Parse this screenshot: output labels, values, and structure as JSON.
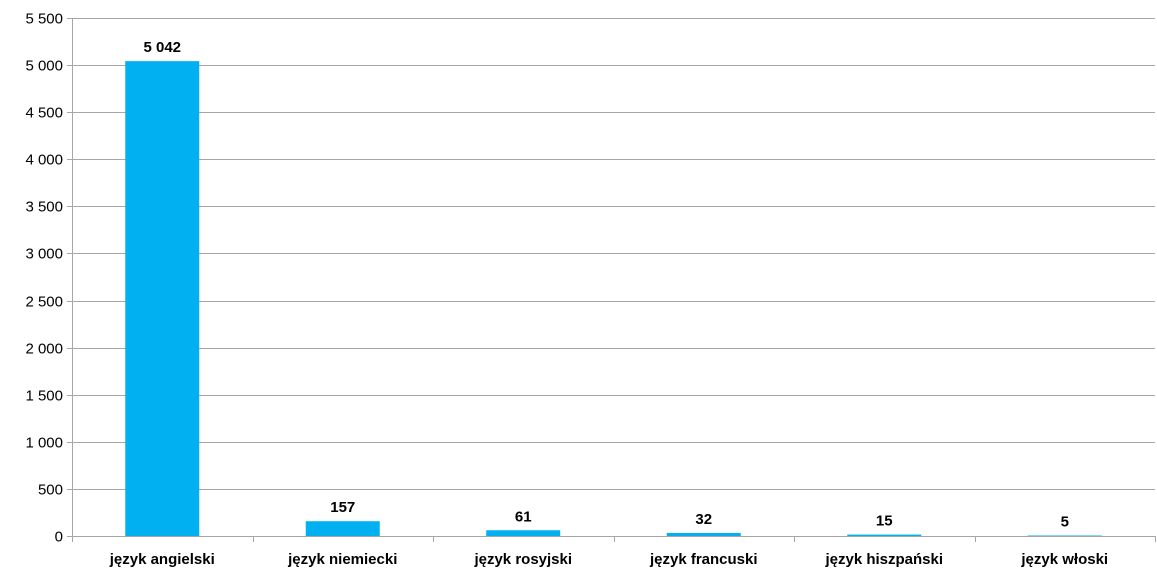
{
  "chart_data": {
    "type": "bar",
    "title": "",
    "xlabel": "",
    "ylabel": "",
    "categories": [
      "język angielski",
      "język niemiecki",
      "język rosyjski",
      "język francuski",
      "język hiszpański",
      "język włoski"
    ],
    "values": [
      5042,
      157,
      61,
      32,
      15,
      5
    ],
    "data_labels": [
      "5 042",
      "157",
      "61",
      "32",
      "15",
      "5"
    ],
    "ylim": [
      0,
      5500
    ],
    "yticks": [
      0,
      500,
      1000,
      1500,
      2000,
      2500,
      3000,
      3500,
      4000,
      4500,
      5000,
      5500
    ],
    "ytick_labels": [
      "0",
      "500",
      "1 000",
      "1 500",
      "2 000",
      "2 500",
      "3 000",
      "3 500",
      "4 000",
      "4 500",
      "5 000",
      "5 500"
    ],
    "grid": true,
    "legend": "none",
    "colors": {
      "bar": "#00b0f0",
      "grid": "#a6a6a6",
      "axis": "#a6a6a6",
      "text": "#000000"
    }
  }
}
